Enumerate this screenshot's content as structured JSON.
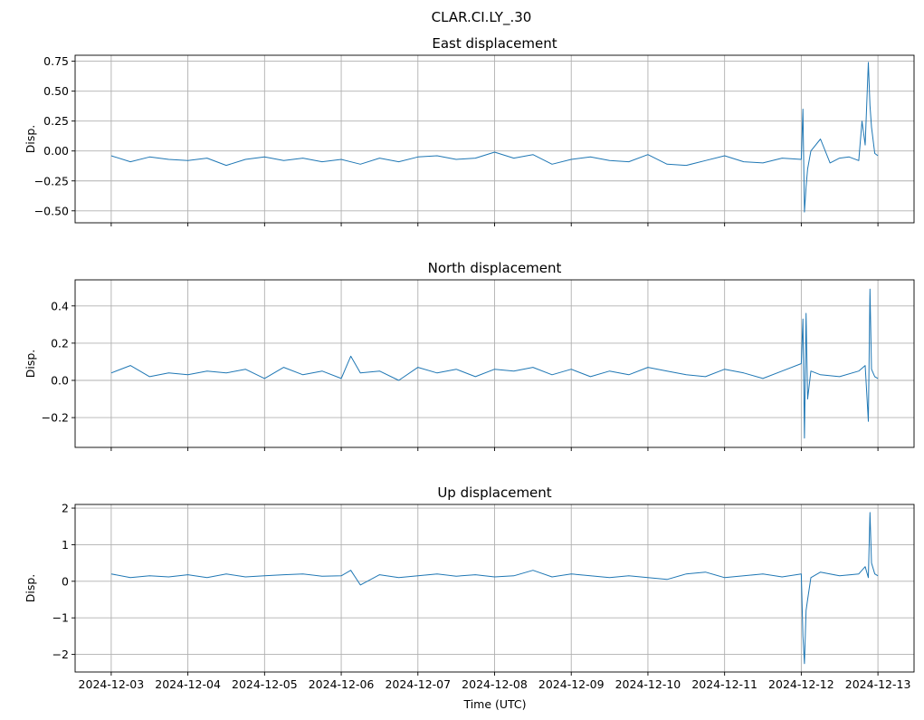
{
  "figure": {
    "suptitle": "CLAR.CI.LY_.30",
    "xlabel": "Time (UTC)",
    "x_ticks": [
      "2024-12-03",
      "2024-12-04",
      "2024-12-05",
      "2024-12-06",
      "2024-12-07",
      "2024-12-08",
      "2024-12-09",
      "2024-12-10",
      "2024-12-11",
      "2024-12-12",
      "2024-12-13"
    ],
    "line_color": "#1f77b4",
    "grid_color": "#b0b0b0"
  },
  "chart_data": [
    {
      "type": "line",
      "title": "East displacement",
      "ylabel": "Disp.",
      "xlim": [
        "2024-12-02T12:42",
        "2024-12-13T11:18"
      ],
      "ylim": [
        -0.6,
        0.8
      ],
      "yticks": [
        0.75,
        0.5,
        0.25,
        0.0,
        -0.25,
        -0.5
      ],
      "ytick_labels": [
        "0.75",
        "0.50",
        "0.25",
        "0.00",
        "−0.25",
        "−0.50"
      ],
      "grid": true,
      "series": [
        {
          "x": [
            "2024-12-03T00:00",
            "2024-12-03T06:00",
            "2024-12-03T12:00",
            "2024-12-03T18:00",
            "2024-12-04T00:00",
            "2024-12-04T06:00",
            "2024-12-04T12:00",
            "2024-12-04T18:00",
            "2024-12-05T00:00",
            "2024-12-05T06:00",
            "2024-12-05T12:00",
            "2024-12-05T18:00",
            "2024-12-06T00:00",
            "2024-12-06T06:00",
            "2024-12-06T12:00",
            "2024-12-06T18:00",
            "2024-12-07T00:00",
            "2024-12-07T06:00",
            "2024-12-07T12:00",
            "2024-12-07T18:00",
            "2024-12-08T00:00",
            "2024-12-08T06:00",
            "2024-12-08T12:00",
            "2024-12-08T18:00",
            "2024-12-09T00:00",
            "2024-12-09T06:00",
            "2024-12-09T12:00",
            "2024-12-09T18:00",
            "2024-12-10T00:00",
            "2024-12-10T06:00",
            "2024-12-10T12:00",
            "2024-12-10T18:00",
            "2024-12-11T00:00",
            "2024-12-11T06:00",
            "2024-12-11T12:00",
            "2024-12-11T18:00",
            "2024-12-12T00:00",
            "2024-12-12T00:30",
            "2024-12-12T01:00",
            "2024-12-12T01:30",
            "2024-12-12T02:00",
            "2024-12-12T03:00",
            "2024-12-12T06:00",
            "2024-12-12T09:00",
            "2024-12-12T12:00",
            "2024-12-12T15:00",
            "2024-12-12T18:00",
            "2024-12-12T19:00",
            "2024-12-12T20:00",
            "2024-12-12T21:00",
            "2024-12-12T21:30",
            "2024-12-12T22:00",
            "2024-12-12T23:00",
            "2024-12-13T00:00"
          ],
          "y": [
            -0.04,
            -0.09,
            -0.05,
            -0.07,
            -0.08,
            -0.06,
            -0.12,
            -0.07,
            -0.05,
            -0.08,
            -0.06,
            -0.09,
            -0.07,
            -0.11,
            -0.06,
            -0.09,
            -0.05,
            -0.04,
            -0.07,
            -0.06,
            -0.01,
            -0.06,
            -0.03,
            -0.11,
            -0.07,
            -0.05,
            -0.08,
            -0.09,
            -0.03,
            -0.11,
            -0.12,
            -0.08,
            -0.04,
            -0.09,
            -0.1,
            -0.06,
            -0.07,
            0.35,
            -0.51,
            -0.3,
            -0.15,
            0.0,
            0.1,
            -0.1,
            -0.06,
            -0.05,
            -0.08,
            0.25,
            0.05,
            0.74,
            0.38,
            0.2,
            -0.02,
            -0.04
          ]
        }
      ]
    },
    {
      "type": "line",
      "title": "North displacement",
      "ylabel": "Disp.",
      "xlim": [
        "2024-12-02T12:42",
        "2024-12-13T11:18"
      ],
      "ylim": [
        -0.36,
        0.54
      ],
      "yticks": [
        0.4,
        0.2,
        0.0,
        -0.2
      ],
      "ytick_labels": [
        "0.4",
        "0.2",
        "0.0",
        "−0.2"
      ],
      "grid": true,
      "series": [
        {
          "x": [
            "2024-12-03T00:00",
            "2024-12-03T06:00",
            "2024-12-03T12:00",
            "2024-12-03T18:00",
            "2024-12-04T00:00",
            "2024-12-04T06:00",
            "2024-12-04T12:00",
            "2024-12-04T18:00",
            "2024-12-05T00:00",
            "2024-12-05T06:00",
            "2024-12-05T12:00",
            "2024-12-05T18:00",
            "2024-12-06T00:00",
            "2024-12-06T03:00",
            "2024-12-06T06:00",
            "2024-12-06T12:00",
            "2024-12-06T18:00",
            "2024-12-07T00:00",
            "2024-12-07T06:00",
            "2024-12-07T12:00",
            "2024-12-07T18:00",
            "2024-12-08T00:00",
            "2024-12-08T06:00",
            "2024-12-08T12:00",
            "2024-12-08T18:00",
            "2024-12-09T00:00",
            "2024-12-09T06:00",
            "2024-12-09T12:00",
            "2024-12-09T18:00",
            "2024-12-10T00:00",
            "2024-12-10T06:00",
            "2024-12-10T12:00",
            "2024-12-10T18:00",
            "2024-12-11T00:00",
            "2024-12-11T06:00",
            "2024-12-11T12:00",
            "2024-12-11T18:00",
            "2024-12-12T00:00",
            "2024-12-12T00:30",
            "2024-12-12T01:00",
            "2024-12-12T01:30",
            "2024-12-12T02:00",
            "2024-12-12T03:00",
            "2024-12-12T06:00",
            "2024-12-12T12:00",
            "2024-12-12T18:00",
            "2024-12-12T20:00",
            "2024-12-12T21:00",
            "2024-12-12T21:30",
            "2024-12-12T22:00",
            "2024-12-12T23:00",
            "2024-12-13T00:00"
          ],
          "y": [
            0.04,
            0.08,
            0.02,
            0.04,
            0.03,
            0.05,
            0.04,
            0.06,
            0.01,
            0.07,
            0.03,
            0.05,
            0.01,
            0.13,
            0.04,
            0.05,
            0.0,
            0.07,
            0.04,
            0.06,
            0.02,
            0.06,
            0.05,
            0.07,
            0.03,
            0.06,
            0.02,
            0.05,
            0.03,
            0.07,
            0.05,
            0.03,
            0.02,
            0.06,
            0.04,
            0.01,
            0.05,
            0.09,
            0.33,
            -0.31,
            0.36,
            -0.1,
            0.05,
            0.03,
            0.02,
            0.05,
            0.08,
            -0.22,
            0.49,
            0.06,
            0.02,
            0.01
          ]
        }
      ]
    },
    {
      "type": "line",
      "title": "Up displacement",
      "ylabel": "Disp.",
      "xlim": [
        "2024-12-02T12:42",
        "2024-12-13T11:18"
      ],
      "ylim": [
        -2.48,
        2.1
      ],
      "yticks": [
        2,
        1,
        0,
        -1,
        -2
      ],
      "ytick_labels": [
        "2",
        "1",
        "0",
        "−1",
        "−2"
      ],
      "grid": true,
      "series": [
        {
          "x": [
            "2024-12-03T00:00",
            "2024-12-03T06:00",
            "2024-12-03T12:00",
            "2024-12-03T18:00",
            "2024-12-04T00:00",
            "2024-12-04T06:00",
            "2024-12-04T12:00",
            "2024-12-04T18:00",
            "2024-12-05T00:00",
            "2024-12-05T06:00",
            "2024-12-05T12:00",
            "2024-12-05T18:00",
            "2024-12-06T00:00",
            "2024-12-06T03:00",
            "2024-12-06T06:00",
            "2024-12-06T12:00",
            "2024-12-06T18:00",
            "2024-12-07T00:00",
            "2024-12-07T06:00",
            "2024-12-07T12:00",
            "2024-12-07T18:00",
            "2024-12-08T00:00",
            "2024-12-08T06:00",
            "2024-12-08T12:00",
            "2024-12-08T18:00",
            "2024-12-09T00:00",
            "2024-12-09T06:00",
            "2024-12-09T12:00",
            "2024-12-09T18:00",
            "2024-12-10T00:00",
            "2024-12-10T06:00",
            "2024-12-10T12:00",
            "2024-12-10T18:00",
            "2024-12-11T00:00",
            "2024-12-11T06:00",
            "2024-12-11T12:00",
            "2024-12-11T18:00",
            "2024-12-12T00:00",
            "2024-12-12T00:30",
            "2024-12-12T01:00",
            "2024-12-12T01:30",
            "2024-12-12T02:00",
            "2024-12-12T03:00",
            "2024-12-12T06:00",
            "2024-12-12T12:00",
            "2024-12-12T18:00",
            "2024-12-12T20:00",
            "2024-12-12T21:00",
            "2024-12-12T21:30",
            "2024-12-12T22:00",
            "2024-12-12T23:00",
            "2024-12-13T00:00"
          ],
          "y": [
            0.2,
            0.1,
            0.15,
            0.12,
            0.18,
            0.1,
            0.2,
            0.12,
            0.15,
            0.18,
            0.2,
            0.14,
            0.15,
            0.3,
            -0.1,
            0.18,
            0.1,
            0.15,
            0.2,
            0.14,
            0.18,
            0.12,
            0.15,
            0.3,
            0.12,
            0.2,
            0.15,
            0.1,
            0.15,
            0.1,
            0.05,
            0.2,
            0.25,
            0.1,
            0.15,
            0.2,
            0.12,
            0.2,
            -1.5,
            -2.25,
            -0.8,
            -0.5,
            0.1,
            0.25,
            0.15,
            0.2,
            0.4,
            0.1,
            1.88,
            0.5,
            0.2,
            0.15
          ]
        }
      ]
    }
  ]
}
